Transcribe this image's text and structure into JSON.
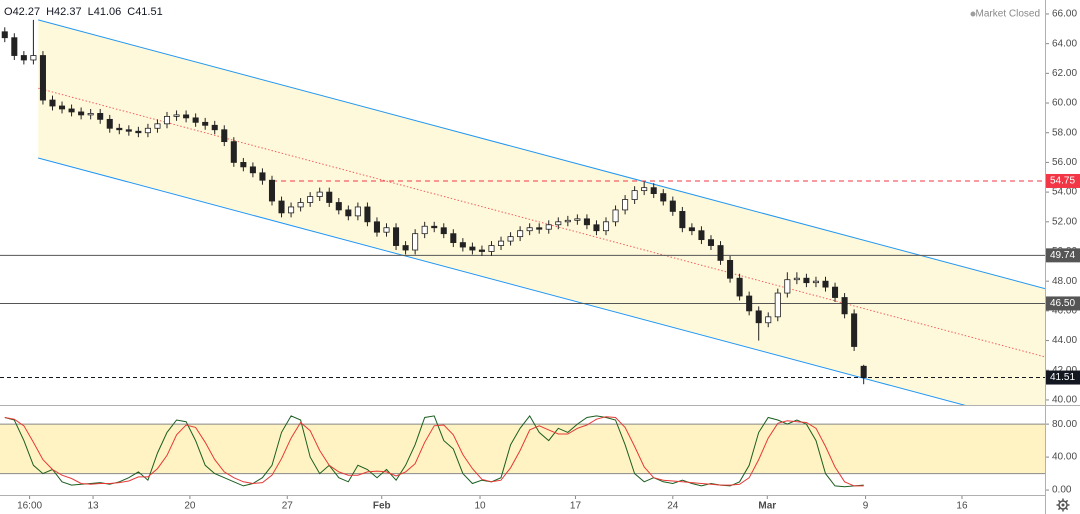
{
  "chart_data": {
    "type": "candlestick",
    "ohlc_labels": [
      "O",
      "H",
      "L",
      "C"
    ],
    "status": "Market Closed",
    "up_color": "#ffffff",
    "down_color": "#222222",
    "open": [
      64.8,
      64.4,
      63.2,
      62.9,
      63.2,
      60.2,
      59.8,
      59.6,
      59.4,
      59.2,
      59.3,
      58.9,
      58.3,
      58.2,
      58.1,
      58.0,
      58.3,
      58.6,
      59.1,
      59.2,
      59.0,
      58.7,
      58.5,
      58.2,
      57.4,
      56.0,
      55.7,
      55.3,
      54.8,
      53.4,
      52.6,
      53.0,
      53.3,
      53.7,
      54.0,
      53.3,
      52.8,
      52.4,
      53.0,
      52.0,
      51.3,
      51.6,
      50.4,
      50.1,
      51.2,
      51.7,
      51.6,
      51.2,
      50.6,
      50.3,
      50.1,
      50.0,
      50.4,
      50.7,
      51.0,
      51.4,
      51.6,
      51.5,
      51.8,
      52.0,
      52.1,
      52.2,
      51.8,
      51.4,
      52.0,
      52.8,
      53.5,
      54.1,
      54.3,
      53.9,
      53.4,
      52.7,
      51.6,
      51.4,
      50.8,
      50.4,
      49.4,
      48.2,
      47.0,
      46.0,
      45.2,
      45.6,
      47.2,
      48.1,
      48.2,
      47.9,
      48.0,
      47.6,
      46.9,
      45.8,
      42.27
    ],
    "high": [
      65.1,
      64.7,
      63.5,
      65.6,
      63.5,
      60.5,
      60.1,
      59.9,
      59.7,
      59.6,
      59.6,
      59.2,
      58.6,
      58.5,
      58.4,
      58.6,
      58.9,
      59.4,
      59.5,
      59.5,
      59.3,
      59.0,
      58.8,
      58.5,
      57.7,
      56.3,
      56.0,
      55.6,
      55.1,
      53.7,
      53.3,
      53.6,
      54.0,
      54.3,
      54.3,
      53.6,
      53.1,
      53.3,
      53.3,
      52.3,
      51.9,
      51.9,
      50.7,
      51.5,
      52.0,
      52.0,
      51.9,
      51.5,
      50.9,
      50.6,
      50.4,
      50.7,
      51.0,
      51.3,
      51.7,
      51.9,
      51.9,
      52.1,
      52.3,
      52.4,
      52.5,
      52.5,
      52.1,
      52.3,
      53.1,
      53.8,
      54.4,
      54.7,
      54.6,
      54.2,
      53.7,
      53.0,
      51.9,
      51.7,
      51.1,
      50.7,
      49.7,
      48.5,
      47.3,
      46.3,
      45.9,
      47.5,
      48.6,
      48.6,
      48.5,
      48.3,
      48.3,
      47.9,
      47.2,
      46.1,
      42.37
    ],
    "low": [
      64.1,
      62.9,
      62.6,
      62.6,
      59.9,
      59.5,
      59.3,
      59.1,
      58.9,
      58.9,
      58.6,
      58.0,
      57.9,
      57.8,
      57.7,
      57.7,
      58.0,
      58.3,
      58.8,
      58.7,
      58.4,
      58.2,
      57.9,
      57.1,
      55.7,
      55.4,
      55.0,
      54.5,
      53.1,
      52.3,
      52.3,
      52.7,
      53.0,
      53.4,
      53.0,
      52.5,
      52.1,
      52.1,
      51.7,
      51.0,
      51.0,
      50.1,
      49.8,
      49.8,
      50.9,
      51.3,
      50.9,
      50.3,
      50.0,
      49.8,
      49.7,
      49.7,
      50.1,
      50.4,
      50.7,
      51.1,
      51.2,
      51.2,
      51.5,
      51.7,
      51.8,
      51.5,
      51.1,
      51.1,
      51.7,
      52.5,
      53.2,
      53.8,
      53.6,
      53.1,
      52.4,
      51.3,
      51.1,
      50.5,
      50.1,
      49.1,
      47.9,
      46.7,
      45.7,
      44.0,
      44.9,
      45.3,
      46.9,
      47.8,
      47.6,
      47.6,
      47.3,
      46.6,
      45.5,
      43.3,
      41.06
    ],
    "close": [
      64.4,
      63.2,
      62.9,
      63.2,
      60.2,
      59.8,
      59.6,
      59.4,
      59.2,
      59.3,
      58.9,
      58.3,
      58.2,
      58.1,
      58.0,
      58.3,
      58.6,
      59.1,
      59.2,
      59.0,
      58.7,
      58.5,
      58.2,
      57.4,
      56.0,
      55.7,
      55.3,
      54.8,
      53.4,
      52.6,
      53.0,
      53.3,
      53.7,
      54.0,
      53.3,
      52.8,
      52.4,
      53.0,
      52.0,
      51.3,
      51.6,
      50.4,
      50.1,
      51.2,
      51.7,
      51.6,
      51.2,
      50.6,
      50.3,
      50.1,
      50.0,
      50.4,
      50.7,
      51.0,
      51.4,
      51.6,
      51.5,
      51.8,
      52.0,
      52.1,
      52.2,
      51.8,
      51.4,
      52.0,
      52.8,
      53.5,
      54.1,
      54.3,
      53.9,
      53.4,
      52.7,
      51.6,
      51.4,
      50.8,
      50.4,
      49.4,
      48.2,
      47.0,
      46.0,
      45.2,
      45.6,
      47.2,
      48.1,
      48.2,
      47.9,
      48.0,
      47.6,
      46.9,
      45.8,
      43.6,
      41.51
    ],
    "xlim": [
      -0.5,
      109
    ],
    "xticks": [
      {
        "value": 2.6,
        "label": "16:00"
      },
      {
        "value": 9.25,
        "label": "13"
      },
      {
        "value": 19.4,
        "label": "20"
      },
      {
        "value": 29.6,
        "label": "27"
      },
      {
        "value": 39.5,
        "label": "Feb"
      },
      {
        "value": 49.8,
        "label": "10"
      },
      {
        "value": 59.8,
        "label": "17"
      },
      {
        "value": 70,
        "label": "24"
      },
      {
        "value": 79.9,
        "label": "Mar"
      },
      {
        "value": 90.2,
        "label": "9"
      },
      {
        "value": 100.3,
        "label": "16"
      }
    ],
    "ylim": [
      39.66,
      66.94
    ],
    "yticks": [
      {
        "value": 40,
        "label": "40.00"
      },
      {
        "value": 42,
        "label": "42.00"
      },
      {
        "value": 44,
        "label": "44.00"
      },
      {
        "value": 46,
        "label": "46.00"
      },
      {
        "value": 48,
        "label": "48.00"
      },
      {
        "value": 50,
        "label": "50.00"
      },
      {
        "value": 52,
        "label": "52.00"
      },
      {
        "value": 54,
        "label": "54.00"
      },
      {
        "value": 56,
        "label": "56.00"
      },
      {
        "value": 58,
        "label": "58.00"
      },
      {
        "value": 60,
        "label": "60.00"
      },
      {
        "value": 62,
        "label": "62.00"
      },
      {
        "value": 64,
        "label": "64.00"
      },
      {
        "value": 66,
        "label": "66.00"
      }
    ],
    "channel": {
      "x": [
        3.5,
        109
      ],
      "upper": [
        65.6,
        47.5
      ],
      "middle": [
        61,
        42.9
      ],
      "lower": [
        56.3,
        38.2
      ],
      "color": "#2196f3",
      "mid_color": "#f06060",
      "fill": "#fff9dc"
    },
    "levels": [
      {
        "value": 54.75,
        "color": "#f23645",
        "style": "dashed",
        "from": 28
      },
      {
        "value": 49.74,
        "color": "#555555",
        "style": "solid",
        "from": -0.5
      },
      {
        "value": 46.5,
        "label": "46.50",
        "color": "#555555",
        "style": "solid",
        "from": -0.5
      }
    ],
    "last_color": "#131722",
    "oscillator": {
      "ylim": [
        -6,
        102
      ],
      "yticks": [
        {
          "value": 0,
          "label": "0.00"
        },
        {
          "value": 40,
          "label": "40.00"
        },
        {
          "value": 80,
          "label": "80.00"
        }
      ],
      "band": [
        20,
        80
      ],
      "band_color": "#fff3c4",
      "series": [
        {
          "color": "#1b5e20",
          "values": [
            88,
            85,
            60,
            30,
            20,
            25,
            10,
            6,
            7,
            8,
            9,
            7,
            10,
            15,
            22,
            12,
            45,
            70,
            85,
            83,
            60,
            30,
            20,
            15,
            10,
            5,
            8,
            15,
            30,
            70,
            90,
            85,
            40,
            20,
            30,
            15,
            10,
            30,
            25,
            15,
            25,
            12,
            30,
            55,
            88,
            90,
            60,
            50,
            20,
            8,
            12,
            10,
            15,
            55,
            75,
            90,
            70,
            60,
            75,
            70,
            80,
            88,
            90,
            88,
            85,
            55,
            20,
            10,
            15,
            10,
            8,
            12,
            8,
            5,
            8,
            6,
            5,
            10,
            30,
            70,
            88,
            85,
            80,
            85,
            80,
            60,
            20,
            5,
            4,
            5,
            6
          ]
        },
        {
          "color": "#e53935",
          "values": [
            88,
            86,
            78,
            58,
            37,
            25,
            18,
            14,
            8,
            7,
            8,
            8,
            9,
            11,
            16,
            16,
            26,
            42,
            67,
            79,
            76,
            58,
            37,
            22,
            15,
            10,
            8,
            9,
            18,
            38,
            63,
            82,
            72,
            48,
            30,
            22,
            18,
            18,
            22,
            23,
            22,
            17,
            22,
            32,
            58,
            78,
            79,
            67,
            43,
            26,
            13,
            10,
            12,
            27,
            48,
            73,
            78,
            73,
            68,
            68,
            75,
            79,
            86,
            89,
            88,
            76,
            53,
            28,
            15,
            12,
            11,
            10,
            9,
            8,
            7,
            6,
            6,
            7,
            15,
            37,
            63,
            81,
            84,
            83,
            82,
            75,
            53,
            28,
            10,
            5,
            5
          ]
        }
      ]
    }
  }
}
